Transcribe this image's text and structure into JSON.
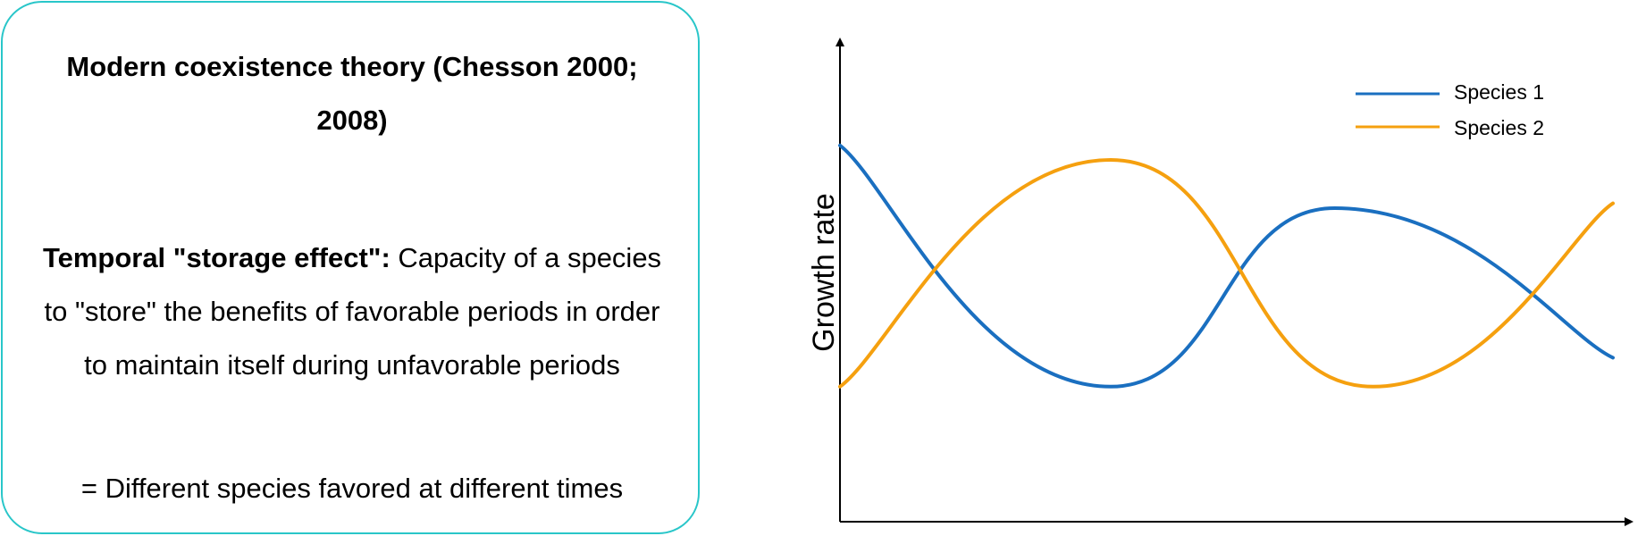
{
  "card": {
    "title": "Modern coexistence theory (Chesson 2000; 2008)",
    "term": "Temporal \"storage effect\":",
    "definition": " Capacity of a species to \"store\" the benefits of favorable periods in order to maintain itself during unfavorable periods",
    "summary": "= Different species favored at different times",
    "border_color": "#29c6c9"
  },
  "chart_data": {
    "type": "line",
    "xlabel": "",
    "ylabel": "Growth rate",
    "xlim": [
      0,
      1
    ],
    "ylim": [
      0,
      1
    ],
    "ticks": false,
    "grid": false,
    "legend_position": "top-right",
    "series": [
      {
        "name": "Species 1",
        "color": "#1a6fc0",
        "x": [
          0.0,
          0.35,
          0.64,
          1.0
        ],
        "y": [
          0.78,
          0.28,
          0.65,
          0.34
        ]
      },
      {
        "name": "Species 2",
        "color": "#f5a00f",
        "x": [
          0.0,
          0.35,
          0.69,
          1.0
        ],
        "y": [
          0.28,
          0.75,
          0.28,
          0.66
        ]
      }
    ]
  }
}
